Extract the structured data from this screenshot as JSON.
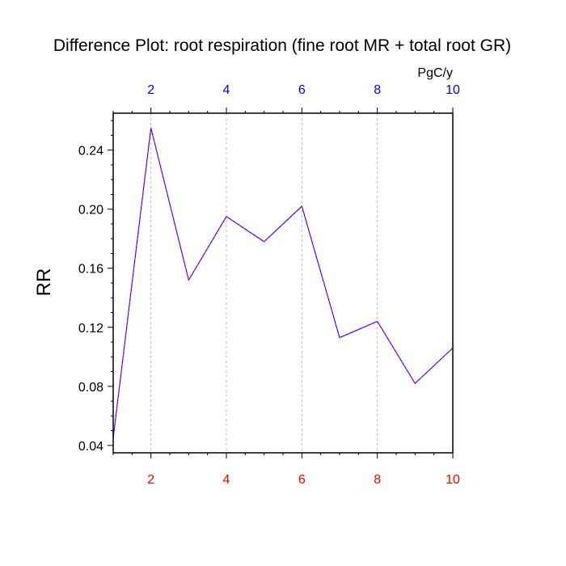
{
  "chart_data": {
    "type": "line",
    "title": "Difference Plot: root respiration (fine root MR + total root GR)",
    "ylabel": "RR",
    "top_axis_units": "PgC/y",
    "xlim": [
      1,
      10
    ],
    "ylim": [
      0.035,
      0.265
    ],
    "x": [
      1,
      2,
      3,
      4,
      5,
      6,
      7,
      8,
      9,
      10
    ],
    "series": [
      {
        "name": "Difference",
        "values": [
          0.045,
          0.255,
          0.152,
          0.195,
          0.178,
          0.202,
          0.113,
          0.124,
          0.082,
          0.106
        ]
      }
    ],
    "y_ticks": [
      0.04,
      0.08,
      0.12,
      0.16,
      0.2,
      0.24
    ],
    "y_tick_labels": [
      "0.04",
      "0.08",
      "0.12",
      "0.16",
      "0.20",
      "0.24"
    ],
    "x_ticks": [
      2,
      4,
      6,
      8,
      10
    ],
    "x_tick_labels": [
      "2",
      "4",
      "6",
      "8",
      "10"
    ],
    "grid": "vertical dashed at labeled x ticks",
    "colors": {
      "bottom_tick_labels": "#ff0000",
      "top_tick_labels": "#0000ff",
      "line_dash_a": "#0000ff",
      "line_dash_b": "#cc00cc",
      "grid": "#bbbbbb"
    }
  }
}
